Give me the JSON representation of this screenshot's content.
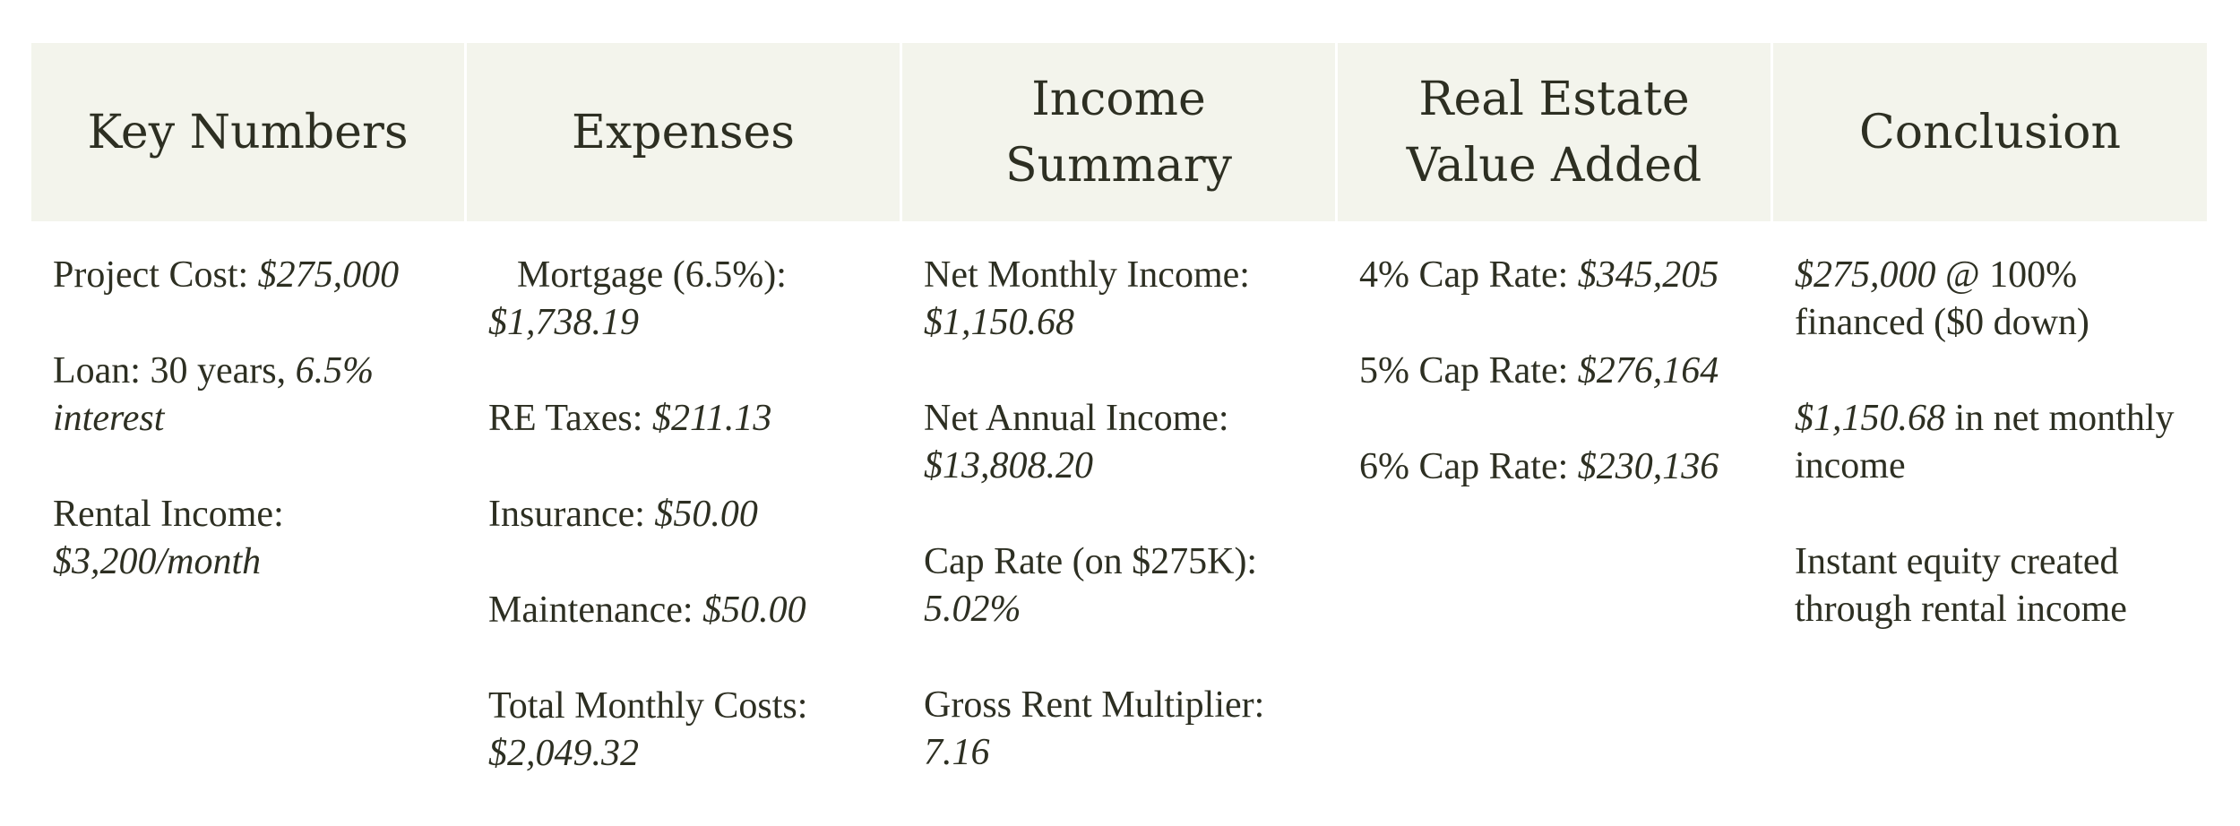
{
  "headers": [
    "Key Numbers",
    "Expenses",
    "Income Summary",
    "Real Estate Value Added",
    "Conclusion"
  ],
  "key_numbers": {
    "project_cost_label": "Project Cost: ",
    "project_cost_value": "$275,000",
    "loan_label": "Loan: 30 years, ",
    "loan_value": "6.5% interest",
    "rental_label": "Rental Income: ",
    "rental_value": "$3,200/month"
  },
  "expenses": {
    "mortgage_label": "Mortgage (6.5%): ",
    "mortgage_value": "$1,738.19",
    "taxes_label": "RE Taxes: ",
    "taxes_value": "$211.13",
    "insurance_label": "Insurance: ",
    "insurance_value": "$50.00",
    "maintenance_label": "Maintenance: ",
    "maintenance_value": "$50.00",
    "total_label": "Total Monthly Costs: ",
    "total_value": "$2,049.32"
  },
  "income_summary": {
    "net_monthly_label": "Net Monthly Income: ",
    "net_monthly_value": "$1,150.68",
    "net_annual_label": "Net Annual Income: ",
    "net_annual_value": "$13,808.20",
    "cap_rate_label": "Cap Rate (on $275K): ",
    "cap_rate_value": "5.02%",
    "grm_label": "Gross Rent Multiplier: ",
    "grm_value": "7.16"
  },
  "value_added": {
    "cap4_label": "4% Cap Rate: ",
    "cap4_value": "$345,205",
    "cap5_label": "5% Cap Rate: ",
    "cap5_value": "$276,164",
    "cap6_label": "6% Cap Rate: ",
    "cap6_value": "$230,136"
  },
  "conclusion": {
    "line1_value": "$275,000",
    "line1_text": " @ 100% financed ($0 down)",
    "line2_value": "$1,150.68",
    "line2_text": " in net monthly income",
    "line3_text": "Instant equity created through rental income"
  }
}
